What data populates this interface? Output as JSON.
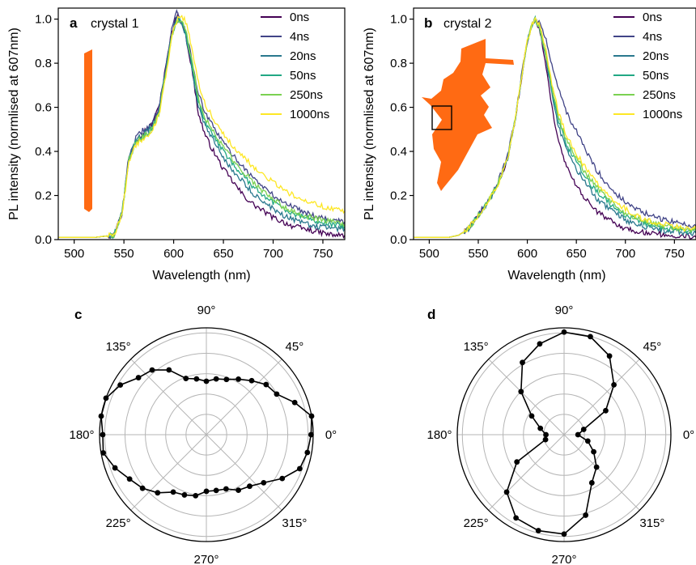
{
  "chart_data": [
    {
      "type": "line",
      "panel_label": "a",
      "title": "crystal 1",
      "xlabel": "Wavelength (nm)",
      "ylabel": "PL intensity (normlised at 607nm)",
      "xlim": [
        484,
        772
      ],
      "ylim": [
        0,
        1.05
      ],
      "xticks": [
        500,
        550,
        600,
        650,
        700,
        750
      ],
      "yticks": [
        0.0,
        0.2,
        0.4,
        0.6,
        0.8,
        1.0
      ],
      "ytick_labels": [
        "0.0",
        "0.2",
        "0.4",
        "0.6",
        "0.8",
        "1.0"
      ],
      "legend": "top-right",
      "inset": "orange elongated crystal",
      "x": [
        484,
        520,
        540,
        548,
        555,
        562,
        570,
        578,
        585,
        592,
        598,
        603,
        607,
        612,
        618,
        625,
        632,
        640,
        650,
        660,
        670,
        680,
        690,
        700,
        710,
        720,
        730,
        740,
        750,
        760,
        772
      ],
      "series": [
        {
          "name": "0ns",
          "color": "#440154",
          "values": [
            0.01,
            0.01,
            0.02,
            0.12,
            0.37,
            0.45,
            0.49,
            0.52,
            0.6,
            0.78,
            0.94,
            1.02,
            1.0,
            0.93,
            0.78,
            0.57,
            0.47,
            0.4,
            0.32,
            0.26,
            0.2,
            0.16,
            0.13,
            0.1,
            0.08,
            0.06,
            0.05,
            0.04,
            0.03,
            0.02,
            0.02
          ]
        },
        {
          "name": "4ns",
          "color": "#414487",
          "values": [
            0.01,
            0.01,
            0.02,
            0.12,
            0.38,
            0.46,
            0.5,
            0.52,
            0.6,
            0.78,
            0.95,
            1.04,
            1.0,
            0.95,
            0.82,
            0.66,
            0.57,
            0.51,
            0.44,
            0.38,
            0.33,
            0.28,
            0.24,
            0.2,
            0.17,
            0.15,
            0.13,
            0.11,
            0.1,
            0.09,
            0.08
          ]
        },
        {
          "name": "20ns",
          "color": "#2a788e",
          "values": [
            0.01,
            0.01,
            0.02,
            0.12,
            0.37,
            0.45,
            0.48,
            0.51,
            0.58,
            0.76,
            0.93,
            1.0,
            0.99,
            0.93,
            0.79,
            0.6,
            0.51,
            0.45,
            0.37,
            0.31,
            0.26,
            0.21,
            0.17,
            0.14,
            0.11,
            0.09,
            0.08,
            0.06,
            0.06,
            0.05,
            0.05
          ]
        },
        {
          "name": "50ns",
          "color": "#22a884",
          "values": [
            0.01,
            0.01,
            0.02,
            0.12,
            0.36,
            0.44,
            0.47,
            0.5,
            0.58,
            0.76,
            0.92,
            0.99,
            1.0,
            0.94,
            0.8,
            0.62,
            0.53,
            0.47,
            0.4,
            0.34,
            0.29,
            0.24,
            0.2,
            0.17,
            0.14,
            0.12,
            0.1,
            0.09,
            0.08,
            0.07,
            0.06
          ]
        },
        {
          "name": "250ns",
          "color": "#7ad151",
          "values": [
            0.01,
            0.01,
            0.02,
            0.12,
            0.36,
            0.44,
            0.47,
            0.5,
            0.57,
            0.75,
            0.92,
            0.99,
            1.0,
            0.95,
            0.82,
            0.64,
            0.55,
            0.49,
            0.42,
            0.36,
            0.31,
            0.26,
            0.22,
            0.18,
            0.15,
            0.13,
            0.11,
            0.1,
            0.09,
            0.08,
            0.07
          ]
        },
        {
          "name": "1000ns",
          "color": "#fde725",
          "values": [
            0.01,
            0.01,
            0.02,
            0.11,
            0.35,
            0.43,
            0.46,
            0.49,
            0.56,
            0.74,
            0.92,
            0.99,
            1.02,
            0.99,
            0.88,
            0.71,
            0.61,
            0.55,
            0.48,
            0.42,
            0.38,
            0.33,
            0.29,
            0.26,
            0.23,
            0.2,
            0.18,
            0.17,
            0.15,
            0.14,
            0.13
          ]
        }
      ]
    },
    {
      "type": "line",
      "panel_label": "b",
      "title": "crystal 2",
      "xlabel": "Wavelength (nm)",
      "ylabel": "PL intensity (normlised at 607nm)",
      "xlim": [
        484,
        772
      ],
      "ylim": [
        0,
        1.05
      ],
      "xticks": [
        500,
        550,
        600,
        650,
        700,
        750
      ],
      "yticks": [
        0.0,
        0.2,
        0.4,
        0.6,
        0.8,
        1.0
      ],
      "ytick_labels": [
        "0.0",
        "0.2",
        "0.4",
        "0.6",
        "0.8",
        "1.0"
      ],
      "legend": "top-right",
      "inset": "orange irregular crystal with square marker",
      "x": [
        484,
        520,
        530,
        540,
        550,
        560,
        570,
        580,
        588,
        595,
        600,
        605,
        608,
        612,
        618,
        625,
        632,
        640,
        650,
        660,
        670,
        680,
        690,
        700,
        710,
        720,
        730,
        740,
        750,
        760,
        772
      ],
      "series": [
        {
          "name": "0ns",
          "color": "#440154",
          "values": [
            0.01,
            0.01,
            0.02,
            0.05,
            0.11,
            0.17,
            0.25,
            0.37,
            0.55,
            0.76,
            0.9,
            0.98,
            1.0,
            0.96,
            0.82,
            0.6,
            0.44,
            0.33,
            0.24,
            0.18,
            0.13,
            0.1,
            0.07,
            0.05,
            0.04,
            0.03,
            0.03,
            0.02,
            0.02,
            0.02,
            0.01
          ]
        },
        {
          "name": "4ns",
          "color": "#414487",
          "values": [
            0.01,
            0.01,
            0.02,
            0.05,
            0.11,
            0.18,
            0.26,
            0.38,
            0.56,
            0.77,
            0.9,
            0.98,
            1.0,
            0.99,
            0.92,
            0.8,
            0.68,
            0.58,
            0.49,
            0.4,
            0.32,
            0.26,
            0.21,
            0.17,
            0.14,
            0.12,
            0.1,
            0.09,
            0.08,
            0.07,
            0.06
          ]
        },
        {
          "name": "20ns",
          "color": "#2a788e",
          "values": [
            0.01,
            0.01,
            0.02,
            0.05,
            0.11,
            0.17,
            0.25,
            0.37,
            0.55,
            0.76,
            0.9,
            0.98,
            1.0,
            0.97,
            0.85,
            0.66,
            0.51,
            0.41,
            0.32,
            0.25,
            0.19,
            0.15,
            0.12,
            0.09,
            0.07,
            0.06,
            0.05,
            0.04,
            0.04,
            0.03,
            0.03
          ]
        },
        {
          "name": "50ns",
          "color": "#22a884",
          "values": [
            0.01,
            0.01,
            0.02,
            0.05,
            0.11,
            0.17,
            0.25,
            0.37,
            0.55,
            0.76,
            0.9,
            0.98,
            1.0,
            0.97,
            0.86,
            0.68,
            0.53,
            0.43,
            0.35,
            0.28,
            0.22,
            0.18,
            0.14,
            0.11,
            0.09,
            0.07,
            0.06,
            0.05,
            0.05,
            0.04,
            0.04
          ]
        },
        {
          "name": "250ns",
          "color": "#7ad151",
          "values": [
            0.01,
            0.01,
            0.02,
            0.05,
            0.11,
            0.17,
            0.25,
            0.37,
            0.55,
            0.76,
            0.9,
            0.98,
            1.0,
            0.97,
            0.86,
            0.69,
            0.55,
            0.45,
            0.37,
            0.3,
            0.24,
            0.19,
            0.15,
            0.12,
            0.1,
            0.08,
            0.07,
            0.06,
            0.05,
            0.05,
            0.04
          ]
        },
        {
          "name": "1000ns",
          "color": "#fde725",
          "values": [
            0.01,
            0.01,
            0.02,
            0.05,
            0.11,
            0.17,
            0.25,
            0.37,
            0.55,
            0.76,
            0.9,
            0.98,
            1.0,
            0.98,
            0.88,
            0.71,
            0.57,
            0.47,
            0.39,
            0.32,
            0.26,
            0.21,
            0.17,
            0.14,
            0.11,
            0.09,
            0.08,
            0.07,
            0.06,
            0.05,
            0.05
          ]
        }
      ]
    },
    {
      "type": "scatter",
      "coordinates": "polar",
      "panel_label": "c",
      "angle_ticks": [
        0,
        45,
        90,
        135,
        180,
        225,
        270,
        315
      ],
      "angle_tick_labels": [
        "0°",
        "45°",
        "90°",
        "135°",
        "180°",
        "225°",
        "270°",
        "315°"
      ],
      "rlim": [
        0,
        1
      ],
      "grid": true,
      "connected": true,
      "theta_deg": [
        0,
        10,
        20,
        30,
        40,
        50,
        60,
        70,
        80,
        90,
        100,
        110,
        120,
        130,
        140,
        150,
        160,
        170,
        180,
        190,
        200,
        210,
        220,
        230,
        240,
        250,
        260,
        270,
        280,
        290,
        300,
        310,
        320,
        330,
        340,
        350
      ],
      "r": [
        0.98,
        1.0,
        0.88,
        0.76,
        0.73,
        0.66,
        0.6,
        0.55,
        0.53,
        0.5,
        0.53,
        0.56,
        0.7,
        0.79,
        0.83,
        0.93,
        1.0,
        1.0,
        0.97,
        0.98,
        0.91,
        0.83,
        0.78,
        0.71,
        0.62,
        0.6,
        0.58,
        0.53,
        0.53,
        0.54,
        0.6,
        0.63,
        0.7,
        0.82,
        0.93,
        0.96
      ]
    },
    {
      "type": "scatter",
      "coordinates": "polar",
      "panel_label": "d",
      "angle_ticks": [
        0,
        45,
        90,
        135,
        180,
        225,
        270,
        315
      ],
      "angle_tick_labels": [
        "0°",
        "45°",
        "90°",
        "135°",
        "180°",
        "225°",
        "270°",
        "315°"
      ],
      "rlim": [
        0,
        1
      ],
      "grid": true,
      "connected": true,
      "theta_deg": [
        0,
        15,
        30,
        45,
        60,
        75,
        90,
        105,
        120,
        135,
        150,
        165,
        180,
        195,
        210,
        225,
        240,
        255,
        270,
        285,
        300,
        315,
        330,
        345
      ],
      "r": [
        0.13,
        0.19,
        0.45,
        0.66,
        0.85,
        0.95,
        0.96,
        0.88,
        0.78,
        0.57,
        0.35,
        0.23,
        0.17,
        0.18,
        0.51,
        0.76,
        0.9,
        0.93,
        0.93,
        0.78,
        0.52,
        0.43,
        0.32,
        0.23
      ]
    }
  ]
}
